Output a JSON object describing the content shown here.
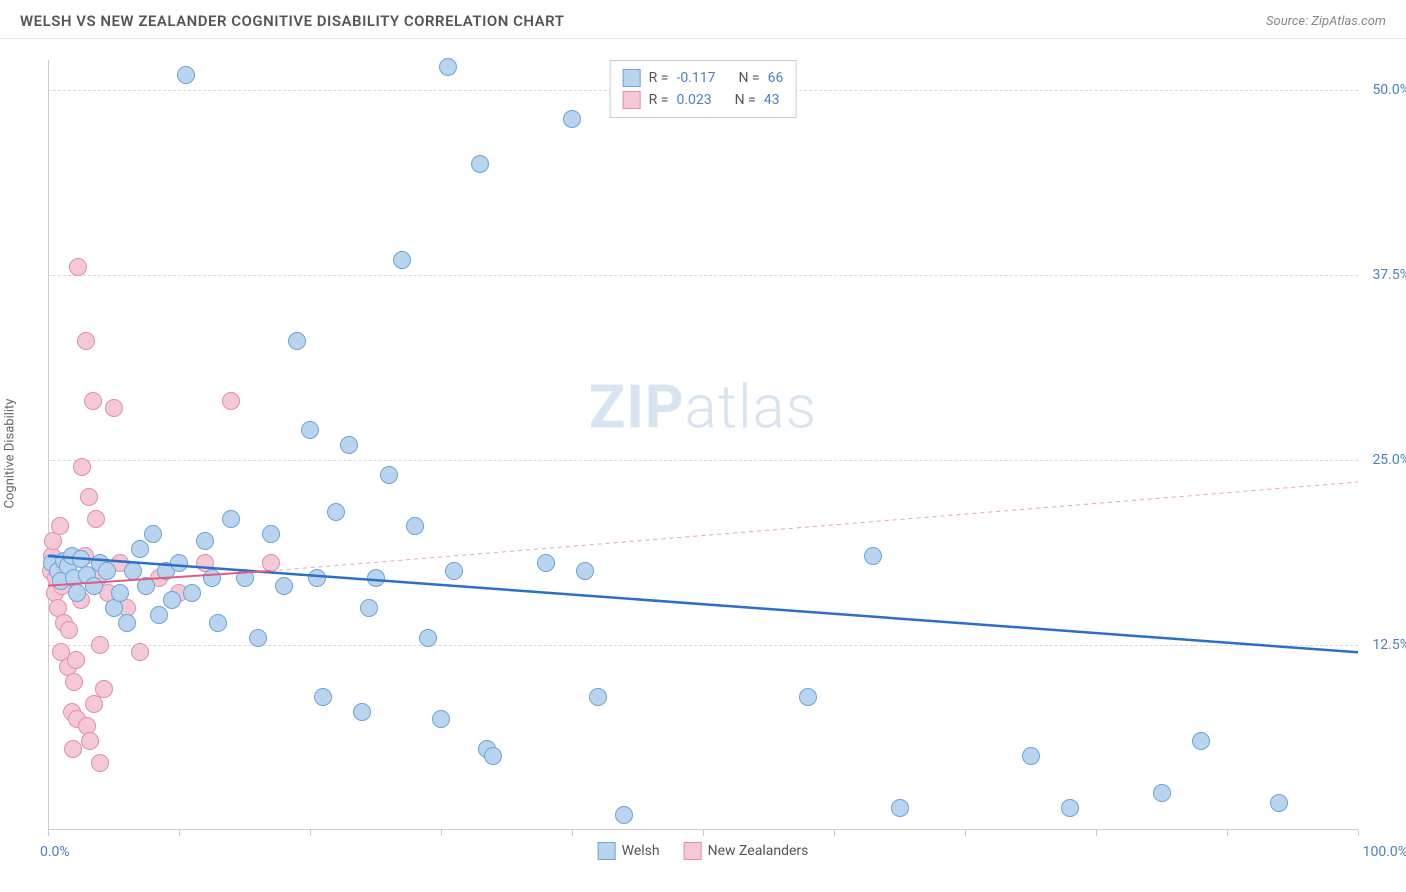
{
  "title": "WELSH VS NEW ZEALANDER COGNITIVE DISABILITY CORRELATION CHART",
  "source": "Source: ZipAtlas.com",
  "y_axis_label": "Cognitive Disability",
  "watermark_zip": "ZIP",
  "watermark_atlas": "atlas",
  "chart": {
    "type": "scatter",
    "background_color": "#ffffff",
    "grid_color": "#d8d8d8",
    "axis_color": "#cccccc",
    "tick_label_color": "#4a7fc7",
    "xlim": [
      0,
      100
    ],
    "ylim": [
      0,
      52
    ],
    "x_axis_labels": {
      "left": "0.0%",
      "right": "100.0%"
    },
    "y_ticks": [
      {
        "value": 12.5,
        "label": "12.5%"
      },
      {
        "value": 25.0,
        "label": "25.0%"
      },
      {
        "value": 37.5,
        "label": "37.5%"
      },
      {
        "value": 50.0,
        "label": "50.0%"
      }
    ],
    "x_tick_positions": [
      0,
      10,
      20,
      30,
      40,
      50,
      60,
      70,
      80,
      90,
      100
    ],
    "marker_radius": 9,
    "marker_stroke_width": 1,
    "series": [
      {
        "name": "Welsh",
        "fill": "#b9d4ee",
        "stroke": "#6fa3d8",
        "correlation_r": "-0.117",
        "correlation_n": "66",
        "trend": {
          "x1": 0,
          "y1": 18.5,
          "x2": 100,
          "y2": 12.0,
          "color": "#2b6fc9",
          "width": 2.5,
          "dash": "none"
        },
        "trend_dashed": null,
        "points": [
          {
            "x": 0.3,
            "y": 18.0
          },
          {
            "x": 0.8,
            "y": 17.5
          },
          {
            "x": 1.2,
            "y": 18.2
          },
          {
            "x": 1.0,
            "y": 16.8
          },
          {
            "x": 1.5,
            "y": 17.8
          },
          {
            "x": 1.8,
            "y": 18.5
          },
          {
            "x": 2.0,
            "y": 17.0
          },
          {
            "x": 2.2,
            "y": 16.0
          },
          {
            "x": 2.5,
            "y": 18.3
          },
          {
            "x": 3.0,
            "y": 17.2
          },
          {
            "x": 3.5,
            "y": 16.5
          },
          {
            "x": 4.0,
            "y": 18.0
          },
          {
            "x": 4.5,
            "y": 17.5
          },
          {
            "x": 5.0,
            "y": 15.0
          },
          {
            "x": 5.5,
            "y": 16.0
          },
          {
            "x": 6.0,
            "y": 14.0
          },
          {
            "x": 6.5,
            "y": 17.5
          },
          {
            "x": 7.0,
            "y": 19.0
          },
          {
            "x": 7.5,
            "y": 16.5
          },
          {
            "x": 8.0,
            "y": 20.0
          },
          {
            "x": 8.5,
            "y": 14.5
          },
          {
            "x": 9.0,
            "y": 17.5
          },
          {
            "x": 9.5,
            "y": 15.5
          },
          {
            "x": 10.0,
            "y": 18.0
          },
          {
            "x": 10.5,
            "y": 51.0
          },
          {
            "x": 11.0,
            "y": 16.0
          },
          {
            "x": 12.0,
            "y": 19.5
          },
          {
            "x": 12.5,
            "y": 17.0
          },
          {
            "x": 13.0,
            "y": 14.0
          },
          {
            "x": 14.0,
            "y": 21.0
          },
          {
            "x": 15.0,
            "y": 17.0
          },
          {
            "x": 16.0,
            "y": 13.0
          },
          {
            "x": 17.0,
            "y": 20.0
          },
          {
            "x": 18.0,
            "y": 16.5
          },
          {
            "x": 19.0,
            "y": 33.0
          },
          {
            "x": 20.0,
            "y": 27.0
          },
          {
            "x": 20.5,
            "y": 17.0
          },
          {
            "x": 21.0,
            "y": 9.0
          },
          {
            "x": 22.0,
            "y": 21.5
          },
          {
            "x": 23.0,
            "y": 26.0
          },
          {
            "x": 24.0,
            "y": 8.0
          },
          {
            "x": 24.5,
            "y": 15.0
          },
          {
            "x": 25.0,
            "y": 17.0
          },
          {
            "x": 26.0,
            "y": 24.0
          },
          {
            "x": 27.0,
            "y": 38.5
          },
          {
            "x": 28.0,
            "y": 20.5
          },
          {
            "x": 29.0,
            "y": 13.0
          },
          {
            "x": 30.0,
            "y": 7.5
          },
          {
            "x": 30.5,
            "y": 51.5
          },
          {
            "x": 31.0,
            "y": 17.5
          },
          {
            "x": 33.0,
            "y": 45.0
          },
          {
            "x": 33.5,
            "y": 5.5
          },
          {
            "x": 34.0,
            "y": 5.0
          },
          {
            "x": 38.0,
            "y": 18.0
          },
          {
            "x": 40.0,
            "y": 48.0
          },
          {
            "x": 41.0,
            "y": 17.5
          },
          {
            "x": 42.0,
            "y": 9.0
          },
          {
            "x": 44.0,
            "y": 1.0
          },
          {
            "x": 58.0,
            "y": 9.0
          },
          {
            "x": 63.0,
            "y": 18.5
          },
          {
            "x": 65.0,
            "y": 1.5
          },
          {
            "x": 75.0,
            "y": 5.0
          },
          {
            "x": 78.0,
            "y": 1.5
          },
          {
            "x": 85.0,
            "y": 2.5
          },
          {
            "x": 88.0,
            "y": 6.0
          },
          {
            "x": 94.0,
            "y": 1.8
          }
        ]
      },
      {
        "name": "New Zealanders",
        "fill": "#f4c8d6",
        "stroke": "#e38fa8",
        "correlation_r": "0.023",
        "correlation_n": "43",
        "trend": {
          "x1": 0,
          "y1": 16.5,
          "x2": 17,
          "y2": 17.5,
          "color": "#e05a82",
          "width": 2,
          "dash": "none"
        },
        "trend_dashed": {
          "x1": 17,
          "y1": 17.5,
          "x2": 100,
          "y2": 23.5,
          "color": "#e8a5b8",
          "width": 1,
          "dash": "4,4"
        },
        "points": [
          {
            "x": 0.2,
            "y": 17.5
          },
          {
            "x": 0.5,
            "y": 16.0
          },
          {
            "x": 0.3,
            "y": 18.5
          },
          {
            "x": 0.8,
            "y": 15.0
          },
          {
            "x": 0.4,
            "y": 19.5
          },
          {
            "x": 1.0,
            "y": 12.0
          },
          {
            "x": 0.6,
            "y": 17.0
          },
          {
            "x": 1.2,
            "y": 14.0
          },
          {
            "x": 0.9,
            "y": 20.5
          },
          {
            "x": 1.5,
            "y": 11.0
          },
          {
            "x": 1.1,
            "y": 16.5
          },
          {
            "x": 1.8,
            "y": 8.0
          },
          {
            "x": 1.3,
            "y": 18.0
          },
          {
            "x": 2.0,
            "y": 10.0
          },
          {
            "x": 1.6,
            "y": 13.5
          },
          {
            "x": 2.2,
            "y": 7.5
          },
          {
            "x": 1.9,
            "y": 5.5
          },
          {
            "x": 2.5,
            "y": 15.5
          },
          {
            "x": 2.1,
            "y": 11.5
          },
          {
            "x": 2.8,
            "y": 18.5
          },
          {
            "x": 2.3,
            "y": 38.0
          },
          {
            "x": 3.0,
            "y": 7.0
          },
          {
            "x": 2.6,
            "y": 24.5
          },
          {
            "x": 3.2,
            "y": 6.0
          },
          {
            "x": 2.9,
            "y": 33.0
          },
          {
            "x": 3.5,
            "y": 8.5
          },
          {
            "x": 3.1,
            "y": 22.5
          },
          {
            "x": 3.8,
            "y": 17.0
          },
          {
            "x": 3.4,
            "y": 29.0
          },
          {
            "x": 4.0,
            "y": 12.5
          },
          {
            "x": 3.7,
            "y": 21.0
          },
          {
            "x": 4.3,
            "y": 9.5
          },
          {
            "x": 4.0,
            "y": 4.5
          },
          {
            "x": 4.6,
            "y": 16.0
          },
          {
            "x": 5.0,
            "y": 28.5
          },
          {
            "x": 5.5,
            "y": 18.0
          },
          {
            "x": 6.0,
            "y": 15.0
          },
          {
            "x": 7.0,
            "y": 12.0
          },
          {
            "x": 8.5,
            "y": 17.0
          },
          {
            "x": 10.0,
            "y": 16.0
          },
          {
            "x": 12.0,
            "y": 18.0
          },
          {
            "x": 14.0,
            "y": 29.0
          },
          {
            "x": 17.0,
            "y": 18.0
          }
        ]
      }
    ]
  },
  "legend_top": {
    "r_label": "R =",
    "n_label": "N ="
  },
  "legend_bottom": [
    {
      "label": "Welsh",
      "fill": "#b9d4ee",
      "stroke": "#6fa3d8"
    },
    {
      "label": "New Zealanders",
      "fill": "#f4c8d6",
      "stroke": "#e38fa8"
    }
  ]
}
